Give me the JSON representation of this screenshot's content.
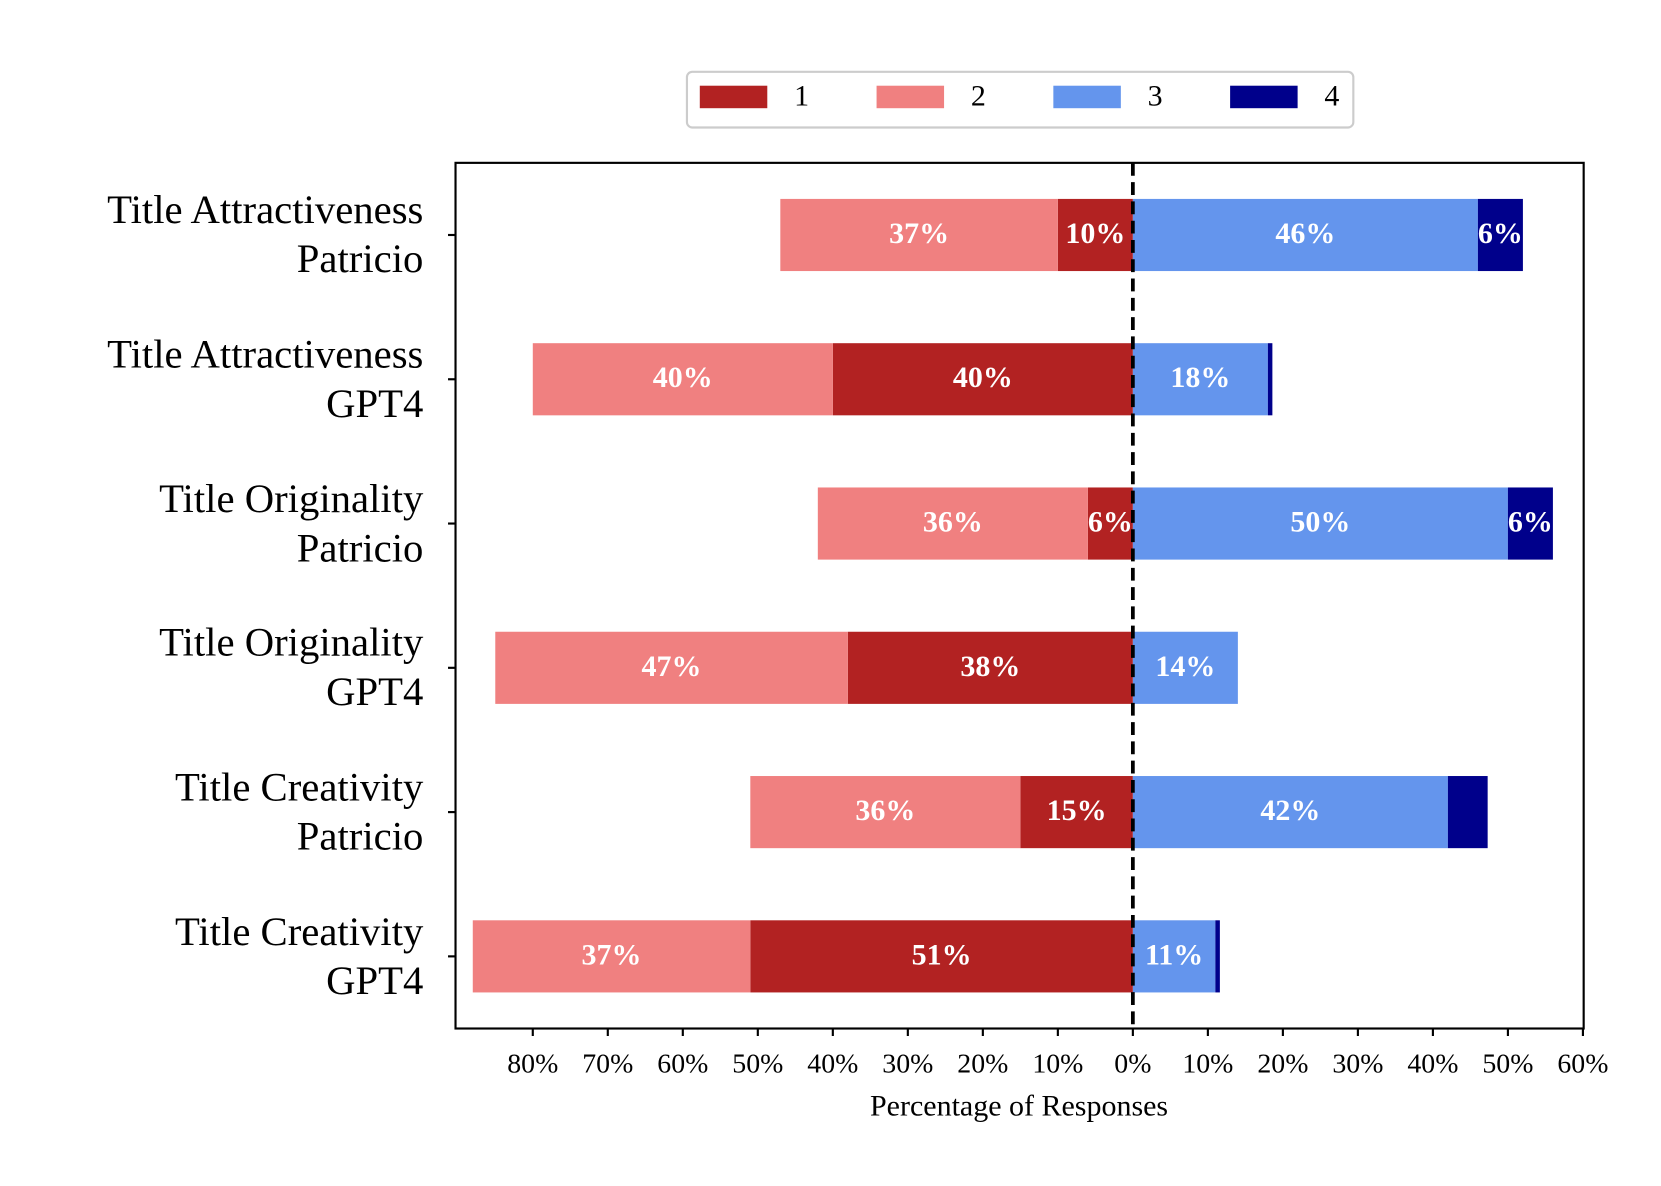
{
  "chart_data": {
    "type": "diverging_bar",
    "x_label": "Percentage of Responses",
    "categories": [
      "Title Attractiveness\nPatricio",
      "Title Attractiveness\nGPT4",
      "Title Originality\nPatricio",
      "Title Originality\nGPT4",
      "Title Creativity\nPatricio",
      "Title Creativity\nGPT4"
    ],
    "series": [
      {
        "name": "1",
        "color": "#b22222",
        "values": [
          -10,
          -40,
          -6,
          -38,
          -15,
          -51
        ],
        "value_labels": [
          "10%",
          "40%",
          "6%",
          "38%",
          "15%",
          "51%"
        ]
      },
      {
        "name": "2",
        "color": "#f08080",
        "values": [
          -37,
          -40,
          -36,
          -47,
          -36,
          -37
        ],
        "value_labels": [
          "37%",
          "40%",
          "36%",
          "47%",
          "36%",
          "37%"
        ]
      },
      {
        "name": "3",
        "color": "#6495ed",
        "values": [
          46,
          18,
          50,
          14,
          42,
          11
        ],
        "value_labels": [
          "46%",
          "18%",
          "50%",
          "14%",
          "42%",
          "11%"
        ]
      },
      {
        "name": "4",
        "color": "#00008b",
        "values": [
          6,
          0.6,
          6,
          0,
          5.3,
          0.6
        ],
        "value_labels": [
          "6%",
          null,
          "6%",
          null,
          null,
          null
        ]
      }
    ],
    "xlim": [
      -90.3,
      60.1
    ],
    "xticks": [
      {
        "value": -80,
        "label": "80%"
      },
      {
        "value": -70,
        "label": "70%"
      },
      {
        "value": -60,
        "label": "60%"
      },
      {
        "value": -50,
        "label": "50%"
      },
      {
        "value": -40,
        "label": "40%"
      },
      {
        "value": -30,
        "label": "30%"
      },
      {
        "value": -20,
        "label": "20%"
      },
      {
        "value": -10,
        "label": "10%"
      },
      {
        "value": 0,
        "label": "0%"
      },
      {
        "value": 10,
        "label": "10%"
      },
      {
        "value": 20,
        "label": "20%"
      },
      {
        "value": 30,
        "label": "30%"
      },
      {
        "value": 40,
        "label": "40%"
      },
      {
        "value": 50,
        "label": "50%"
      },
      {
        "value": 60,
        "label": "60%"
      }
    ],
    "grid": false
  }
}
